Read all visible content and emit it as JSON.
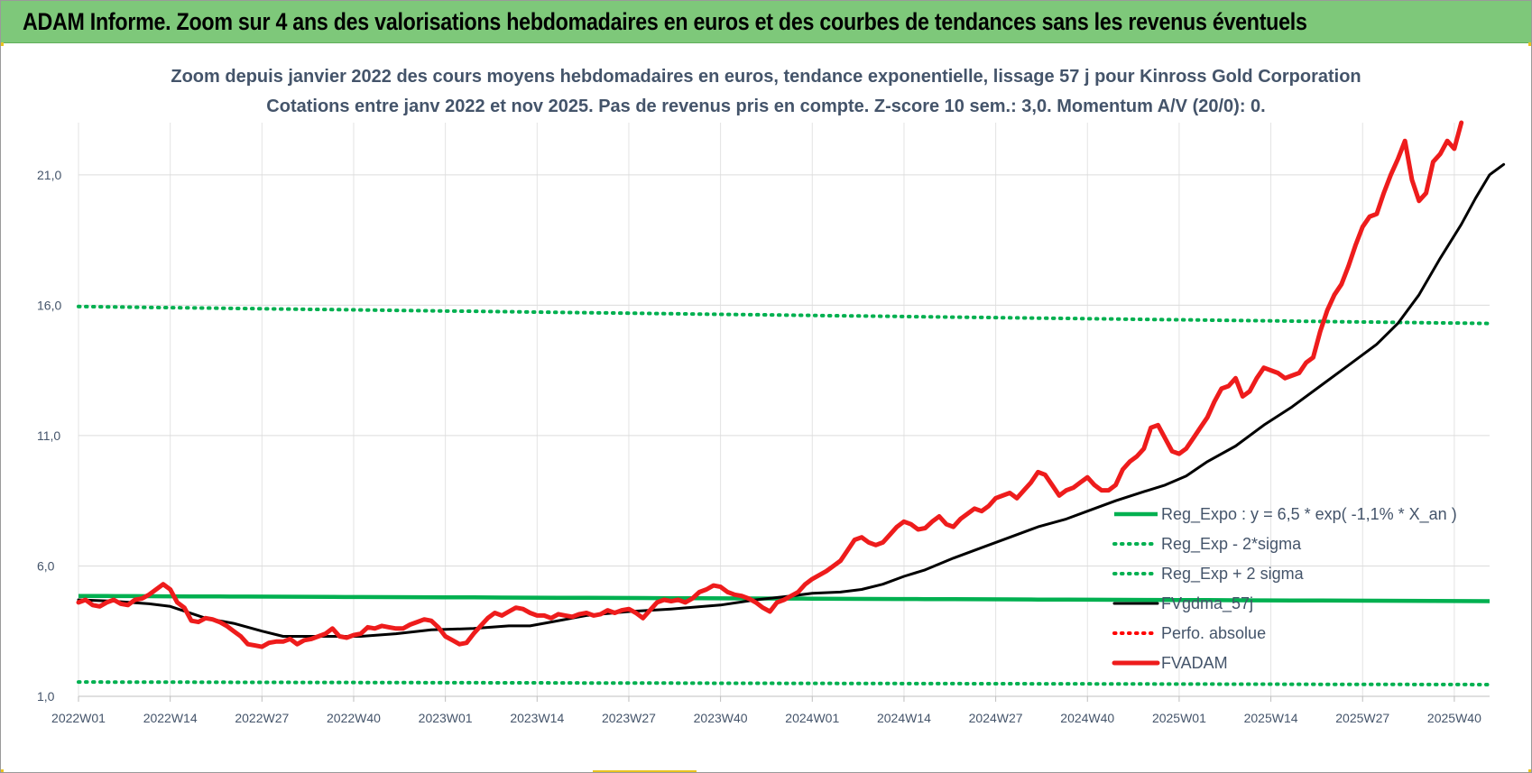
{
  "header": {
    "title": "ADAM Informe. Zoom sur 4 ans des valorisations hebdomadaires en euros et des courbes de tendances sans les revenus éventuels"
  },
  "chart_data": {
    "type": "line",
    "title_line1": "Zoom depuis janvier 2022 des cours moyens hebdomadaires en euros, tendance exponentielle, lissage 57 j pour Kinross Gold Corporation",
    "title_line2": "Cotations entre janv 2022 et nov 2025. Pas de revenus pris en compte. Z-score 10 sem.: 3,0. Momentum A/V (20/0): 0.",
    "xlabel": "",
    "ylabel": "",
    "ylim": [
      1,
      23
    ],
    "yticks": [
      1,
      6,
      11,
      16,
      21
    ],
    "ytick_labels": [
      "1,0",
      "6,0",
      "11,0",
      "16,0",
      "21,0"
    ],
    "x_count": 201,
    "xtick_index": [
      0,
      13,
      26,
      39,
      52,
      65,
      78,
      91,
      104,
      117,
      130,
      143,
      156,
      169,
      182,
      195
    ],
    "xtick_labels": [
      "2022W01",
      "2022W14",
      "2022W27",
      "2022W40",
      "2023W01",
      "2023W14",
      "2023W27",
      "2023W40",
      "2024W01",
      "2024W14",
      "2024W27",
      "2024W40",
      "2025W01",
      "2025W14",
      "2025W27",
      "2025W40"
    ],
    "grid": true,
    "legend_position": "right",
    "series": [
      {
        "name": "Reg_Expo : y = 6,5 * exp( -1,1% *  X_an )",
        "color": "#00b050",
        "style": "solid",
        "kind": "exp",
        "endpoints": [
          4.85,
          4.65
        ]
      },
      {
        "name": "Reg_Exp - 2*sigma",
        "color": "#00b050",
        "style": "dotted",
        "kind": "exp",
        "endpoints": [
          1.55,
          1.45
        ]
      },
      {
        "name": "Reg_Exp + 2 sigma",
        "color": "#00b050",
        "style": "dotted",
        "kind": "exp",
        "endpoints": [
          15.95,
          15.3
        ]
      },
      {
        "name": "FVgdma_57j",
        "color": "#000000",
        "style": "solid",
        "kind": "points",
        "points": [
          [
            0,
            4.7
          ],
          [
            5,
            4.65
          ],
          [
            10,
            4.55
          ],
          [
            13,
            4.45
          ],
          [
            18,
            4.0
          ],
          [
            22,
            3.8
          ],
          [
            26,
            3.5
          ],
          [
            29,
            3.3
          ],
          [
            35,
            3.3
          ],
          [
            40,
            3.3
          ],
          [
            45,
            3.4
          ],
          [
            50,
            3.55
          ],
          [
            56,
            3.6
          ],
          [
            61,
            3.7
          ],
          [
            64,
            3.7
          ],
          [
            67,
            3.85
          ],
          [
            72,
            4.1
          ],
          [
            78,
            4.25
          ],
          [
            84,
            4.35
          ],
          [
            91,
            4.5
          ],
          [
            96,
            4.7
          ],
          [
            101,
            4.85
          ],
          [
            104,
            4.95
          ],
          [
            108,
            5.0
          ],
          [
            111,
            5.1
          ],
          [
            114,
            5.3
          ],
          [
            117,
            5.6
          ],
          [
            120,
            5.85
          ],
          [
            124,
            6.3
          ],
          [
            128,
            6.7
          ],
          [
            132,
            7.1
          ],
          [
            136,
            7.5
          ],
          [
            140,
            7.8
          ],
          [
            143,
            8.1
          ],
          [
            147,
            8.5
          ],
          [
            151,
            8.85
          ],
          [
            154,
            9.1
          ],
          [
            157,
            9.45
          ],
          [
            160,
            10.0
          ],
          [
            164,
            10.6
          ],
          [
            168,
            11.4
          ],
          [
            172,
            12.1
          ],
          [
            176,
            12.9
          ],
          [
            180,
            13.7
          ],
          [
            184,
            14.5
          ],
          [
            187,
            15.3
          ],
          [
            190,
            16.4
          ],
          [
            193,
            17.8
          ],
          [
            196,
            19.1
          ],
          [
            198,
            20.1
          ],
          [
            200,
            21.0
          ],
          [
            202,
            21.4
          ]
        ]
      },
      {
        "name": "Perfo. absolue",
        "color": "#ff0000",
        "style": "dotted",
        "kind": "none"
      },
      {
        "name": "FVADAM",
        "color": "#ee1c1c",
        "style": "solid",
        "kind": "points",
        "points": [
          [
            0,
            4.6
          ],
          [
            1,
            4.7
          ],
          [
            2,
            4.5
          ],
          [
            3,
            4.45
          ],
          [
            4,
            4.6
          ],
          [
            5,
            4.7
          ],
          [
            6,
            4.55
          ],
          [
            7,
            4.5
          ],
          [
            8,
            4.7
          ],
          [
            9,
            4.75
          ],
          [
            10,
            4.9
          ],
          [
            11,
            5.1
          ],
          [
            12,
            5.3
          ],
          [
            13,
            5.1
          ],
          [
            14,
            4.6
          ],
          [
            15,
            4.4
          ],
          [
            16,
            3.9
          ],
          [
            17,
            3.85
          ],
          [
            18,
            4.0
          ],
          [
            19,
            3.95
          ],
          [
            20,
            3.85
          ],
          [
            21,
            3.7
          ],
          [
            22,
            3.5
          ],
          [
            23,
            3.3
          ],
          [
            24,
            3.0
          ],
          [
            25,
            2.95
          ],
          [
            26,
            2.9
          ],
          [
            27,
            3.05
          ],
          [
            28,
            3.1
          ],
          [
            29,
            3.1
          ],
          [
            30,
            3.2
          ],
          [
            31,
            3.0
          ],
          [
            32,
            3.15
          ],
          [
            33,
            3.2
          ],
          [
            34,
            3.3
          ],
          [
            35,
            3.4
          ],
          [
            36,
            3.6
          ],
          [
            37,
            3.3
          ],
          [
            38,
            3.25
          ],
          [
            39,
            3.35
          ],
          [
            40,
            3.4
          ],
          [
            41,
            3.65
          ],
          [
            42,
            3.6
          ],
          [
            43,
            3.7
          ],
          [
            44,
            3.65
          ],
          [
            45,
            3.6
          ],
          [
            46,
            3.6
          ],
          [
            47,
            3.75
          ],
          [
            48,
            3.85
          ],
          [
            49,
            3.95
          ],
          [
            50,
            3.9
          ],
          [
            51,
            3.65
          ],
          [
            52,
            3.3
          ],
          [
            53,
            3.15
          ],
          [
            54,
            3.0
          ],
          [
            55,
            3.05
          ],
          [
            56,
            3.4
          ],
          [
            57,
            3.7
          ],
          [
            58,
            4.0
          ],
          [
            59,
            4.2
          ],
          [
            60,
            4.1
          ],
          [
            61,
            4.25
          ],
          [
            62,
            4.4
          ],
          [
            63,
            4.35
          ],
          [
            64,
            4.2
          ],
          [
            65,
            4.1
          ],
          [
            66,
            4.1
          ],
          [
            67,
            4.0
          ],
          [
            68,
            4.15
          ],
          [
            69,
            4.1
          ],
          [
            70,
            4.05
          ],
          [
            71,
            4.15
          ],
          [
            72,
            4.2
          ],
          [
            73,
            4.1
          ],
          [
            74,
            4.15
          ],
          [
            75,
            4.3
          ],
          [
            76,
            4.2
          ],
          [
            77,
            4.3
          ],
          [
            78,
            4.35
          ],
          [
            79,
            4.2
          ],
          [
            80,
            4.0
          ],
          [
            81,
            4.3
          ],
          [
            82,
            4.6
          ],
          [
            83,
            4.7
          ],
          [
            84,
            4.65
          ],
          [
            85,
            4.7
          ],
          [
            86,
            4.6
          ],
          [
            87,
            4.75
          ],
          [
            88,
            5.0
          ],
          [
            89,
            5.1
          ],
          [
            90,
            5.25
          ],
          [
            91,
            5.2
          ],
          [
            92,
            5.0
          ],
          [
            93,
            4.9
          ],
          [
            94,
            4.85
          ],
          [
            95,
            4.75
          ],
          [
            96,
            4.6
          ],
          [
            97,
            4.4
          ],
          [
            98,
            4.25
          ],
          [
            99,
            4.6
          ],
          [
            100,
            4.7
          ],
          [
            101,
            4.85
          ],
          [
            102,
            5.0
          ],
          [
            103,
            5.3
          ],
          [
            104,
            5.5
          ],
          [
            105,
            5.65
          ],
          [
            106,
            5.8
          ],
          [
            107,
            6.0
          ],
          [
            108,
            6.2
          ],
          [
            109,
            6.6
          ],
          [
            110,
            7.0
          ],
          [
            111,
            7.1
          ],
          [
            112,
            6.9
          ],
          [
            113,
            6.8
          ],
          [
            114,
            6.9
          ],
          [
            115,
            7.2
          ],
          [
            116,
            7.5
          ],
          [
            117,
            7.7
          ],
          [
            118,
            7.6
          ],
          [
            119,
            7.4
          ],
          [
            120,
            7.45
          ],
          [
            121,
            7.7
          ],
          [
            122,
            7.9
          ],
          [
            123,
            7.6
          ],
          [
            124,
            7.5
          ],
          [
            125,
            7.8
          ],
          [
            126,
            8.0
          ],
          [
            127,
            8.2
          ],
          [
            128,
            8.1
          ],
          [
            129,
            8.3
          ],
          [
            130,
            8.6
          ],
          [
            131,
            8.7
          ],
          [
            132,
            8.8
          ],
          [
            133,
            8.6
          ],
          [
            134,
            8.9
          ],
          [
            135,
            9.2
          ],
          [
            136,
            9.6
          ],
          [
            137,
            9.5
          ],
          [
            138,
            9.1
          ],
          [
            139,
            8.7
          ],
          [
            140,
            8.9
          ],
          [
            141,
            9.0
          ],
          [
            142,
            9.2
          ],
          [
            143,
            9.4
          ],
          [
            144,
            9.1
          ],
          [
            145,
            8.9
          ],
          [
            146,
            8.9
          ],
          [
            147,
            9.1
          ],
          [
            148,
            9.7
          ],
          [
            149,
            10.0
          ],
          [
            150,
            10.2
          ],
          [
            151,
            10.5
          ],
          [
            152,
            11.3
          ],
          [
            153,
            11.4
          ],
          [
            154,
            10.9
          ],
          [
            155,
            10.4
          ],
          [
            156,
            10.3
          ],
          [
            157,
            10.5
          ],
          [
            158,
            10.9
          ],
          [
            159,
            11.3
          ],
          [
            160,
            11.7
          ],
          [
            161,
            12.3
          ],
          [
            162,
            12.8
          ],
          [
            163,
            12.9
          ],
          [
            164,
            13.2
          ],
          [
            165,
            12.5
          ],
          [
            166,
            12.7
          ],
          [
            167,
            13.2
          ],
          [
            168,
            13.6
          ],
          [
            169,
            13.5
          ],
          [
            170,
            13.4
          ],
          [
            171,
            13.2
          ],
          [
            172,
            13.3
          ],
          [
            173,
            13.4
          ],
          [
            174,
            13.8
          ],
          [
            175,
            14.0
          ],
          [
            176,
            15.0
          ],
          [
            177,
            15.8
          ],
          [
            178,
            16.4
          ],
          [
            179,
            16.8
          ],
          [
            180,
            17.5
          ],
          [
            181,
            18.3
          ],
          [
            182,
            19.0
          ],
          [
            183,
            19.4
          ],
          [
            184,
            19.5
          ],
          [
            185,
            20.3
          ],
          [
            186,
            21.0
          ],
          [
            187,
            21.6
          ],
          [
            188,
            22.3
          ],
          [
            189,
            20.8
          ],
          [
            190,
            20.0
          ],
          [
            191,
            20.3
          ],
          [
            192,
            21.5
          ],
          [
            193,
            21.8
          ],
          [
            194,
            22.3
          ],
          [
            195,
            22.0
          ],
          [
            196,
            23.0
          ]
        ]
      }
    ]
  }
}
